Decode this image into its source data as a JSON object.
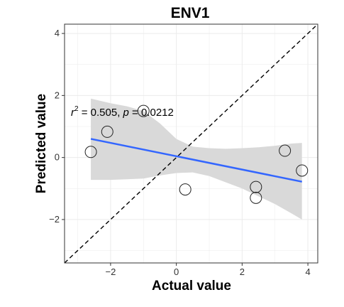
{
  "chart_data": {
    "type": "scatter",
    "title": "ENV1",
    "xlabel": "Actual value",
    "ylabel": "Predicted value",
    "xlim": [
      -3.4,
      4.3
    ],
    "ylim": [
      -3.4,
      4.3
    ],
    "x_ticks": [
      -2,
      0,
      2,
      4
    ],
    "y_ticks": [
      -2,
      0,
      2,
      4
    ],
    "x_tick_labels": [
      "−2",
      "0",
      "2",
      "4"
    ],
    "y_tick_labels": [
      "−2",
      "0",
      "2",
      "4"
    ],
    "grid": true,
    "legend": "none",
    "points": [
      {
        "x": -2.6,
        "y": 0.18
      },
      {
        "x": -2.1,
        "y": 0.83
      },
      {
        "x": -1.0,
        "y": 1.5
      },
      {
        "x": 0.27,
        "y": -1.03
      },
      {
        "x": 2.42,
        "y": -0.95
      },
      {
        "x": 2.42,
        "y": -1.3
      },
      {
        "x": 3.3,
        "y": 0.22
      },
      {
        "x": 3.82,
        "y": -0.42
      }
    ],
    "regression": {
      "x": [
        -2.6,
        3.82
      ],
      "y": [
        0.6,
        -0.78
      ]
    },
    "confidence_band": {
      "x": [
        -2.6,
        -2.0,
        -1.5,
        -1.0,
        -0.5,
        0.0,
        0.5,
        1.0,
        1.5,
        2.0,
        2.5,
        3.0,
        3.5,
        3.82
      ],
      "upper": [
        1.9,
        1.75,
        1.65,
        1.5,
        1.1,
        0.6,
        0.35,
        0.3,
        0.28,
        0.3,
        0.33,
        0.38,
        0.45,
        0.47
      ],
      "lower": [
        -0.72,
        -0.72,
        -0.7,
        -0.68,
        -0.58,
        -0.5,
        -0.48,
        -0.6,
        -0.8,
        -1.0,
        -1.25,
        -1.5,
        -1.8,
        -2.0
      ]
    },
    "identity_line": true,
    "annotation": {
      "r2_prefix": "r",
      "r2_exp": "2",
      "r2_value": " = 0.505, ",
      "p_label": "p",
      "p_value": " = 0.0212"
    },
    "colors": {
      "regression": "#3366ff",
      "band": "#d9d9d9",
      "points_stroke": "#222222",
      "grid": "#ebebeb",
      "identity": "#000000"
    }
  }
}
